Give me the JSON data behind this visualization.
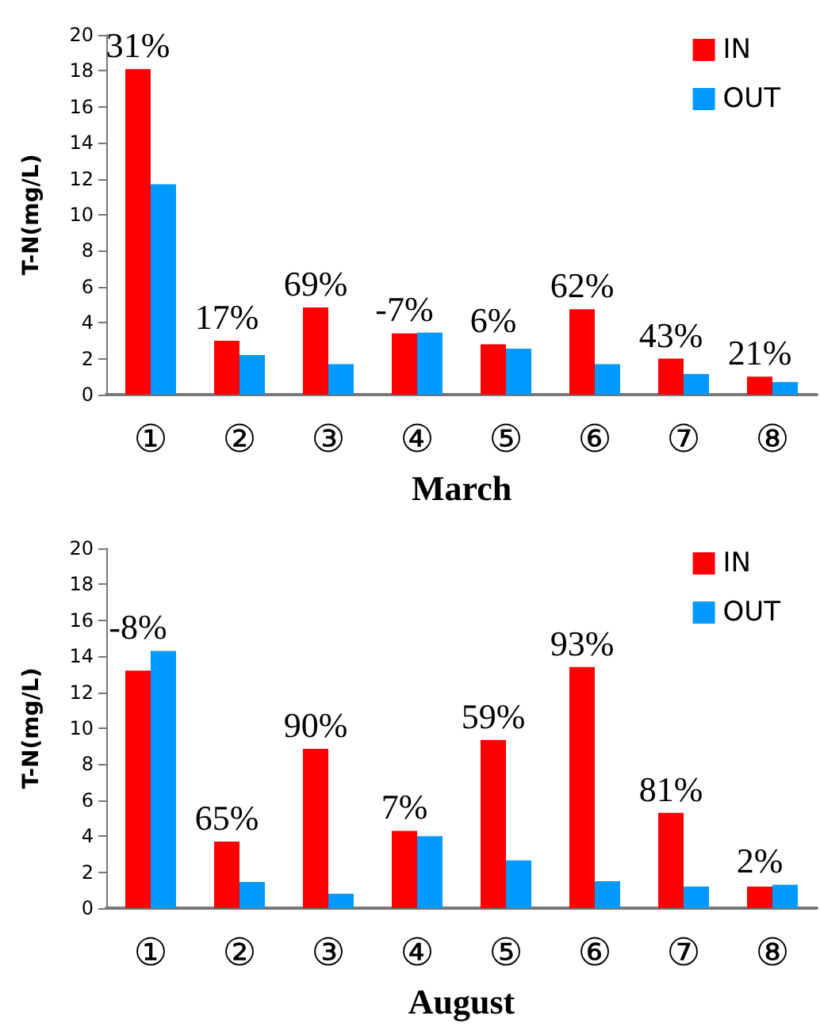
{
  "chart_data": [
    {
      "type": "bar",
      "xlabel": "March",
      "ylabel": "T-N(mg/L)",
      "categories": [
        "①",
        "②",
        "③",
        "④",
        "⑤",
        "⑥",
        "⑦",
        "⑧"
      ],
      "series": [
        {
          "name": "IN",
          "color": "#ff0000",
          "values": [
            18.1,
            3.0,
            4.85,
            3.4,
            2.8,
            4.75,
            2.0,
            1.0
          ]
        },
        {
          "name": "OUT",
          "color": "#0099ff",
          "values": [
            11.7,
            2.2,
            1.7,
            3.45,
            2.55,
            1.7,
            1.15,
            0.7
          ]
        }
      ],
      "ylim": [
        0,
        20
      ],
      "yticks": [
        0,
        2,
        4,
        6,
        8,
        10,
        12,
        14,
        16,
        18,
        20
      ],
      "grid": false,
      "legend": "top right",
      "annotations": [
        {
          "text": "31%",
          "x": "①",
          "y": 18.1
        },
        {
          "text": "17%",
          "x": "②",
          "y": 3.0
        },
        {
          "text": "69%",
          "x": "③",
          "y": 4.85
        },
        {
          "text": "-7%",
          "x": "④",
          "y": 3.45
        },
        {
          "text": "6%",
          "x": "⑤",
          "y": 2.8
        },
        {
          "text": "62%",
          "x": "⑥",
          "y": 4.75
        },
        {
          "text": "43%",
          "x": "⑦",
          "y": 2.0
        },
        {
          "text": "21%",
          "x": "⑧",
          "y": 1.0
        }
      ]
    },
    {
      "type": "bar",
      "xlabel": "August",
      "ylabel": "T-N(mg/L)",
      "categories": [
        "①",
        "②",
        "③",
        "④",
        "⑤",
        "⑥",
        "⑦",
        "⑧"
      ],
      "series": [
        {
          "name": "IN",
          "color": "#ff0000",
          "values": [
            13.2,
            3.7,
            8.85,
            4.3,
            9.35,
            13.4,
            5.3,
            1.2
          ]
        },
        {
          "name": "OUT",
          "color": "#0099ff",
          "values": [
            14.3,
            1.45,
            0.8,
            4.0,
            2.65,
            1.5,
            1.2,
            1.3
          ]
        }
      ],
      "ylim": [
        0,
        20
      ],
      "yticks": [
        0,
        2,
        4,
        6,
        8,
        10,
        12,
        14,
        16,
        18,
        20
      ],
      "grid": false,
      "legend": "top right",
      "annotations": [
        {
          "text": "-8%",
          "x": "①",
          "y": 14.3
        },
        {
          "text": "65%",
          "x": "②",
          "y": 3.7
        },
        {
          "text": "90%",
          "x": "③",
          "y": 8.85
        },
        {
          "text": "7%",
          "x": "④",
          "y": 4.3
        },
        {
          "text": "59%",
          "x": "⑤",
          "y": 9.35
        },
        {
          "text": "93%",
          "x": "⑥",
          "y": 13.4
        },
        {
          "text": "81%",
          "x": "⑦",
          "y": 5.3
        },
        {
          "text": "2%",
          "x": "⑧",
          "y": 1.3
        }
      ]
    }
  ]
}
